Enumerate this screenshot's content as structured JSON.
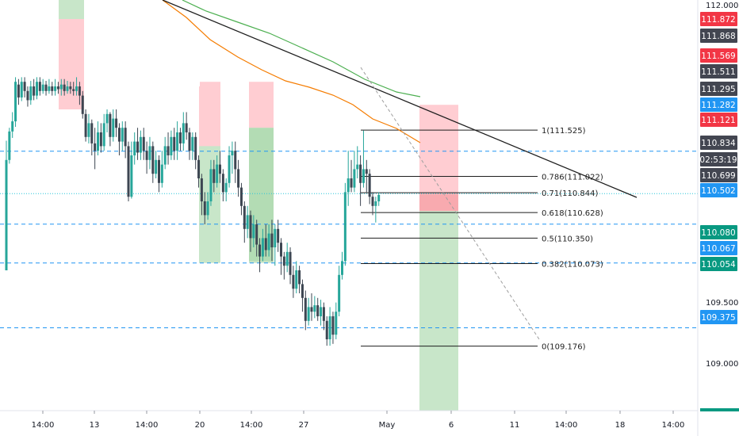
{
  "chart_data": {
    "type": "candlestick",
    "symbol_hint": "",
    "y_axis": {
      "ticks": [
        "112.000",
        "109.500",
        "109.000"
      ],
      "range": [
        108.62,
        112.05
      ]
    },
    "x_axis": {
      "ticks": [
        "14:00",
        "13",
        "14:00",
        "20",
        "14:00",
        "27",
        "May",
        "6",
        "11",
        "14:00",
        "18",
        "14:00"
      ]
    },
    "price_badges": [
      {
        "label": "111.872",
        "value": 111.872,
        "color": "#f23645"
      },
      {
        "label": "111.868",
        "value": 111.868,
        "color": "#434651"
      },
      {
        "label": "111.569",
        "value": 111.569,
        "color": "#f23645"
      },
      {
        "label": "111.511",
        "value": 111.511,
        "color": "#434651"
      },
      {
        "label": "111.295",
        "value": 111.295,
        "color": "#434651"
      },
      {
        "label": "111.282",
        "value": 111.282,
        "color": "#2196f3"
      },
      {
        "label": "111.121",
        "value": 111.121,
        "color": "#f23645"
      },
      {
        "label": "110.834",
        "value": 110.834,
        "color": "#434651"
      },
      {
        "label": "02:53:19",
        "value": 110.755,
        "color": "#434651"
      },
      {
        "label": "110.699",
        "value": 110.699,
        "color": "#434651"
      },
      {
        "label": "110.502",
        "value": 110.502,
        "color": "#2196f3"
      },
      {
        "label": "110.080",
        "value": 110.08,
        "color": "#089981"
      },
      {
        "label": "110.067",
        "value": 110.067,
        "color": "#2196f3"
      },
      {
        "label": "110.054",
        "value": 110.054,
        "color": "#089981"
      },
      {
        "label": "109.375",
        "value": 109.375,
        "color": "#2196f3"
      }
    ],
    "horizontal_levels": [
      {
        "value": 111.295,
        "style": "dashed",
        "color": "#2196f3"
      },
      {
        "value": 110.834,
        "style": "dotted",
        "color": "#26c6da"
      },
      {
        "value": 110.502,
        "style": "dashed",
        "color": "#2196f3"
      },
      {
        "value": 110.08,
        "style": "dashed",
        "color": "#2196f3"
      },
      {
        "value": 109.375,
        "style": "dashed",
        "color": "#2196f3"
      }
    ],
    "fibonacci": {
      "from_value": 109.176,
      "to_value": 111.525,
      "levels": [
        {
          "ratio": 1,
          "value": 111.525,
          "label": "1(111.525)"
        },
        {
          "ratio": 0.786,
          "value": 111.022,
          "label": "0.786(111.022)"
        },
        {
          "ratio": 0.71,
          "value": 110.844,
          "label": "0.71(110.844)"
        },
        {
          "ratio": 0.618,
          "value": 110.628,
          "label": "0.618(110.628)"
        },
        {
          "ratio": 0.5,
          "value": 110.35,
          "label": "0.5(110.350)"
        },
        {
          "ratio": 0.382,
          "value": 110.073,
          "label": "0.382(110.073)"
        },
        {
          "ratio": 0,
          "value": 109.176,
          "label": "0(109.176)"
        }
      ]
    },
    "position_zones": [
      {
        "kind": "short",
        "stop_top": 111.8,
        "entry": 110.834,
        "target_bottom": 108.62
      },
      {
        "kind": "past_short",
        "stop_top": 112.05,
        "entry": 111.6,
        "target_bottom": 111.2
      },
      {
        "kind": "past_short",
        "stop_top": 112.05,
        "entry": 111.55,
        "target_bottom": 110.1
      },
      {
        "kind": "past_short",
        "stop_top": 112.0,
        "entry": 111.35,
        "target_bottom": 110.08
      },
      {
        "kind": "past_long",
        "stop_top": 112.05,
        "entry": 111.9,
        "target_bottom": 111.85
      }
    ],
    "colors": {
      "up": "#26a69a",
      "down": "#3d4652",
      "ma_orange": "#f57c00",
      "ma_green": "#4caf50",
      "trendline": "#1e1e1e",
      "profit_zone": "#c8e6c9",
      "loss_zone": "#ffcdd2"
    },
    "candles": [
      [
        0,
        110,
        111.2,
        111.41,
        110.91
      ],
      [
        1,
        111.2,
        111.51,
        111.55,
        111.16
      ],
      [
        2,
        111.51,
        111.62,
        111.72,
        111.44
      ],
      [
        3,
        111.62,
        112.05,
        112.1,
        111.56
      ],
      [
        4,
        112.02,
        111.88,
        112.08,
        111.8
      ],
      [
        5,
        111.88,
        112.05,
        112.1,
        111.84
      ],
      [
        6,
        112.05,
        111.95,
        112.1,
        111.88
      ],
      [
        7,
        111.95,
        111.85,
        112.0,
        111.78
      ],
      [
        8,
        111.85,
        112.0,
        112.06,
        111.8
      ],
      [
        9,
        112.0,
        111.9,
        112.08,
        111.85
      ],
      [
        10,
        111.9,
        112.05,
        112.1,
        111.86
      ],
      [
        11,
        112.05,
        111.95,
        112.1,
        111.9
      ],
      [
        12,
        111.95,
        112.02,
        112.08,
        111.92
      ],
      [
        13,
        112.02,
        111.95,
        112.06,
        111.9
      ],
      [
        14,
        111.95,
        112.0,
        112.08,
        111.92
      ],
      [
        15,
        112.0,
        111.95,
        112.05,
        111.9
      ],
      [
        16,
        111.95,
        112.0,
        112.08,
        111.9
      ],
      [
        17,
        112.0,
        111.97,
        112.05,
        111.92
      ],
      [
        18,
        111.97,
        112.02,
        112.08,
        111.9
      ],
      [
        19,
        112.02,
        111.95,
        112.08,
        111.9
      ],
      [
        20,
        111.95,
        112.0,
        112.06,
        111.92
      ],
      [
        21,
        112.0,
        111.97,
        112.05,
        111.92
      ],
      [
        22,
        111.97,
        111.95,
        112.05,
        111.9
      ],
      [
        23,
        111.95,
        112.0,
        112.1,
        111.9
      ],
      [
        24,
        112.0,
        111.9,
        112.05,
        111.8
      ],
      [
        25,
        111.9,
        111.7,
        111.95,
        111.65
      ],
      [
        26,
        111.7,
        111.45,
        111.75,
        111.4
      ],
      [
        27,
        111.45,
        111.6,
        111.7,
        111.38
      ],
      [
        28,
        111.6,
        111.38,
        111.64,
        111.25
      ],
      [
        29,
        111.38,
        111.3,
        111.55,
        111.1
      ],
      [
        30,
        111.3,
        111.5,
        111.62,
        111.25
      ],
      [
        31,
        111.5,
        111.35,
        111.6,
        111.28
      ],
      [
        32,
        111.35,
        111.6,
        111.7,
        111.3
      ],
      [
        33,
        111.6,
        111.7,
        111.75,
        111.5
      ],
      [
        34,
        111.7,
        111.45,
        111.72,
        111.35
      ],
      [
        35,
        111.45,
        111.65,
        111.75,
        111.4
      ],
      [
        36,
        111.65,
        111.55,
        111.75,
        111.45
      ],
      [
        37,
        111.55,
        111.4,
        111.6,
        111.25
      ],
      [
        38,
        111.4,
        111.55,
        111.62,
        111.3
      ],
      [
        39,
        111.55,
        111.35,
        111.62,
        111.22
      ],
      [
        40,
        111.35,
        110.8,
        111.4,
        110.75
      ],
      [
        41,
        110.8,
        111.25,
        111.4,
        110.78
      ],
      [
        42,
        111.25,
        111.4,
        111.5,
        111.15
      ],
      [
        43,
        111.4,
        111.28,
        111.55,
        111.2
      ],
      [
        44,
        111.28,
        111.45,
        111.52,
        111.2
      ],
      [
        45,
        111.45,
        111.3,
        111.55,
        111.2
      ],
      [
        46,
        111.3,
        111.2,
        111.4,
        111.05
      ],
      [
        47,
        111.2,
        111.35,
        111.45,
        111.1
      ],
      [
        48,
        111.35,
        111.05,
        111.4,
        110.95
      ],
      [
        49,
        111.05,
        111.2,
        111.3,
        111.0
      ],
      [
        50,
        111.2,
        110.95,
        111.25,
        110.85
      ],
      [
        51,
        110.95,
        111.15,
        111.3,
        110.9
      ],
      [
        52,
        111.15,
        111.35,
        111.45,
        111.1
      ],
      [
        53,
        111.35,
        111.25,
        111.5,
        111.15
      ],
      [
        54,
        111.25,
        111.45,
        111.52,
        111.2
      ],
      [
        55,
        111.45,
        111.3,
        111.55,
        111.2
      ],
      [
        56,
        111.3,
        111.5,
        111.62,
        111.2
      ],
      [
        57,
        111.5,
        111.38,
        111.55,
        111.3
      ],
      [
        58,
        111.38,
        111.6,
        111.72,
        111.3
      ],
      [
        59,
        111.6,
        111.5,
        111.72,
        111.42
      ],
      [
        60,
        111.5,
        111.3,
        111.55,
        111.2
      ],
      [
        61,
        111.3,
        111.45,
        111.5,
        111.2
      ],
      [
        62,
        111.45,
        111.2,
        111.5,
        111.1
      ],
      [
        63,
        111.2,
        111.0,
        111.25,
        110.9
      ],
      [
        64,
        111.0,
        110.75,
        111.05,
        110.6
      ],
      [
        65,
        110.75,
        110.6,
        110.85,
        110.5
      ],
      [
        66,
        110.6,
        110.75,
        110.85,
        110.55
      ],
      [
        67,
        110.75,
        111.1,
        111.2,
        110.7
      ],
      [
        68,
        111.1,
        110.95,
        111.2,
        110.85
      ],
      [
        69,
        110.95,
        111.15,
        111.25,
        110.9
      ],
      [
        70,
        111.15,
        111.05,
        111.3,
        110.95
      ],
      [
        71,
        111.05,
        110.85,
        111.1,
        110.75
      ],
      [
        72,
        110.85,
        110.95,
        111.0,
        110.75
      ],
      [
        73,
        110.95,
        111.25,
        111.35,
        110.9
      ],
      [
        74,
        111.25,
        111.3,
        111.4,
        111.05
      ],
      [
        75,
        111.3,
        111.1,
        111.4,
        110.95
      ],
      [
        76,
        111.1,
        110.9,
        111.2,
        110.8
      ],
      [
        77,
        110.9,
        110.7,
        110.95,
        110.6
      ],
      [
        78,
        110.7,
        110.45,
        110.75,
        110.3
      ],
      [
        79,
        110.45,
        110.6,
        110.7,
        110.35
      ],
      [
        80,
        110.6,
        110.35,
        110.65,
        110.2
      ],
      [
        81,
        110.35,
        110.5,
        110.6,
        110.25
      ],
      [
        82,
        110.5,
        110.28,
        110.55,
        110.15
      ],
      [
        83,
        110.28,
        110.15,
        110.35,
        109.98
      ],
      [
        84,
        110.15,
        110.35,
        110.45,
        110.1
      ],
      [
        85,
        110.35,
        110.22,
        110.5,
        110.15
      ],
      [
        86,
        110.22,
        110.4,
        110.5,
        110.15
      ],
      [
        87,
        110.4,
        110.25,
        110.55,
        110.1
      ],
      [
        88,
        110.25,
        110.45,
        110.5,
        110.05
      ],
      [
        89,
        110.45,
        110.3,
        110.55,
        110.2
      ],
      [
        90,
        110.3,
        110.15,
        110.35,
        109.95
      ],
      [
        91,
        110.15,
        110.05,
        110.2,
        109.9
      ],
      [
        92,
        110.05,
        110.2,
        110.3,
        109.98
      ],
      [
        93,
        110.2,
        109.95,
        110.25,
        109.85
      ],
      [
        94,
        109.95,
        109.8,
        110.05,
        109.7
      ],
      [
        95,
        109.8,
        110.0,
        110.1,
        109.75
      ],
      [
        96,
        110.0,
        109.85,
        110.05,
        109.75
      ],
      [
        97,
        109.85,
        109.7,
        109.9,
        109.55
      ],
      [
        98,
        109.7,
        109.45,
        109.78,
        109.35
      ],
      [
        99,
        109.45,
        109.6,
        109.7,
        109.4
      ],
      [
        100,
        109.6,
        109.55,
        109.75,
        109.45
      ],
      [
        101,
        109.55,
        109.62,
        109.72,
        109.48
      ],
      [
        102,
        109.62,
        109.5,
        109.7,
        109.45
      ],
      [
        103,
        109.5,
        109.6,
        109.68,
        109.4
      ],
      [
        104,
        109.6,
        109.45,
        109.65,
        109.35
      ],
      [
        105,
        109.45,
        109.25,
        109.5,
        109.18
      ],
      [
        106,
        109.25,
        109.5,
        109.6,
        109.18
      ],
      [
        107,
        109.5,
        109.3,
        109.55,
        109.2
      ],
      [
        108,
        109.3,
        109.55,
        109.65,
        109.25
      ],
      [
        109,
        109.55,
        109.95,
        110.05,
        109.5
      ],
      [
        110,
        109.95,
        110.1,
        110.2,
        109.9
      ],
      [
        111,
        110.1,
        110.85,
        110.95,
        110.05
      ],
      [
        112,
        110.85,
        111.0,
        111.3,
        110.7
      ],
      [
        113,
        111.0,
        110.9,
        111.2,
        110.85
      ],
      [
        114,
        110.9,
        111.1,
        111.3,
        110.85
      ],
      [
        115,
        111.1,
        111.15,
        111.35,
        111.0
      ],
      [
        116,
        111.15,
        110.95,
        111.25,
        110.7
      ],
      [
        117,
        110.95,
        111.1,
        111.52,
        110.9
      ],
      [
        118,
        111.1,
        111.05,
        111.2,
        110.85
      ],
      [
        119,
        111.05,
        110.8,
        111.1,
        110.72
      ],
      [
        120,
        110.8,
        110.7,
        110.85,
        110.6
      ],
      [
        121,
        110.7,
        110.75,
        110.8,
        110.52
      ],
      [
        122,
        110.75,
        110.82,
        110.85,
        110.7
      ]
    ]
  }
}
